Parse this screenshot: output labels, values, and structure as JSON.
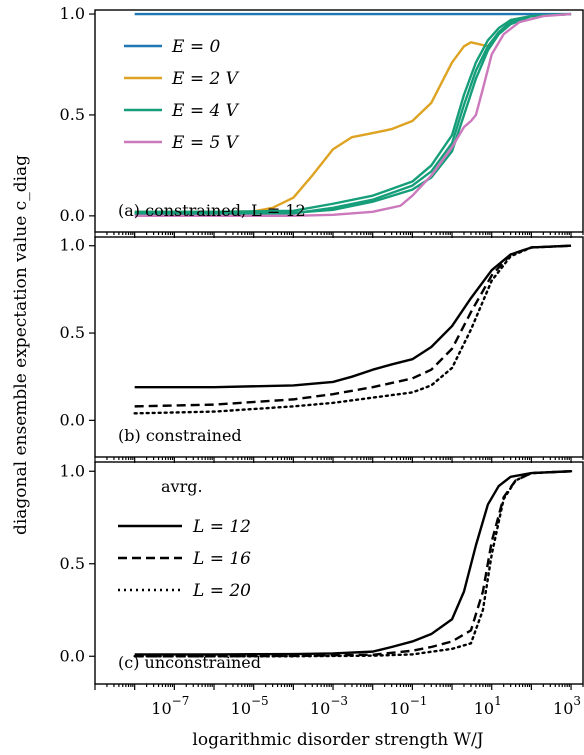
{
  "y_axis_label": "diagonal ensemble expectation value c_diag",
  "x_axis_label": "logarithmic disorder strength W/J",
  "colors": {
    "E0": "#1f77b4",
    "E2": "#dea322",
    "E4": "#169e7a",
    "E5": "#cc78bc",
    "black": "#000000"
  },
  "chart_data": [
    {
      "type": "line",
      "caption": "(a) constrained, L = 12",
      "x_scale": "log",
      "xlim": [
        1e-09,
        2000
      ],
      "ylim": [
        -0.08,
        1.02
      ],
      "y_ticks": [
        "0.0",
        "0.5",
        "1.0"
      ],
      "legend_position": "upper-left",
      "series": [
        {
          "name": "E = 0",
          "color": "#1f77b4",
          "style": "solid",
          "x": [
            1e-08,
            1e-06,
            0.0001,
            0.01,
            1,
            10,
            100,
            1000
          ],
          "y": [
            1.0,
            1.0,
            1.0,
            1.0,
            1.0,
            1.0,
            1.0,
            1.0
          ]
        },
        {
          "name": "E = 2 V",
          "color": "#dea322",
          "style": "solid",
          "x": [
            1e-08,
            1e-06,
            1e-05,
            3e-05,
            0.0001,
            0.0003,
            0.001,
            0.003,
            0.01,
            0.03,
            0.1,
            0.3,
            1,
            2,
            3,
            5,
            8,
            15,
            30,
            100,
            1000
          ],
          "y": [
            0.02,
            0.02,
            0.022,
            0.04,
            0.09,
            0.2,
            0.33,
            0.39,
            0.41,
            0.43,
            0.47,
            0.56,
            0.76,
            0.84,
            0.86,
            0.85,
            0.84,
            0.9,
            0.97,
            0.99,
            1.0
          ]
        },
        {
          "name": "E = 4 V",
          "color": "#169e7a",
          "style": "solid",
          "x": [
            1e-08,
            1e-06,
            0.0001,
            0.001,
            0.01,
            0.1,
            0.3,
            1,
            2,
            4,
            8,
            15,
            30,
            100,
            1000
          ],
          "y": [
            0.01,
            0.01,
            0.012,
            0.04,
            0.08,
            0.15,
            0.22,
            0.36,
            0.55,
            0.72,
            0.84,
            0.91,
            0.96,
            0.99,
            1.0
          ]
        },
        {
          "name": "E = 4 V",
          "color": "#169e7a",
          "style": "solid",
          "x": [
            1e-08,
            1e-06,
            0.0001,
            0.001,
            0.01,
            0.1,
            0.3,
            1,
            2,
            4,
            8,
            15,
            30,
            100,
            1000
          ],
          "y": [
            0.02,
            0.02,
            0.025,
            0.06,
            0.1,
            0.17,
            0.25,
            0.4,
            0.6,
            0.76,
            0.87,
            0.93,
            0.97,
            0.99,
            1.0
          ]
        },
        {
          "name": "E = 4 V",
          "color": "#169e7a",
          "style": "solid",
          "x": [
            1e-08,
            1e-06,
            0.0001,
            0.001,
            0.01,
            0.1,
            0.3,
            1,
            2,
            4,
            8,
            15,
            30,
            100,
            1000
          ],
          "y": [
            0.01,
            0.01,
            0.015,
            0.03,
            0.07,
            0.13,
            0.19,
            0.32,
            0.5,
            0.68,
            0.82,
            0.9,
            0.95,
            0.99,
            1.0
          ]
        },
        {
          "name": "E = 5 V",
          "color": "#cc78bc",
          "style": "solid",
          "x": [
            1e-08,
            0.0001,
            0.001,
            0.01,
            0.05,
            0.1,
            0.3,
            1,
            2,
            3,
            4,
            6,
            10,
            20,
            50,
            200,
            1000
          ],
          "y": [
            0.0,
            0.0,
            0.005,
            0.02,
            0.05,
            0.1,
            0.2,
            0.34,
            0.44,
            0.47,
            0.5,
            0.63,
            0.8,
            0.9,
            0.96,
            0.99,
            1.0
          ]
        }
      ]
    },
    {
      "type": "line",
      "caption": "(b) constrained",
      "x_scale": "log",
      "xlim": [
        1e-09,
        2000
      ],
      "ylim": [
        -0.21,
        1.05
      ],
      "y_ticks": [
        "0.0",
        "0.5",
        "1.0"
      ],
      "series": [
        {
          "color": "#000000",
          "style": "solid",
          "x": [
            1e-08,
            1e-06,
            0.0001,
            0.001,
            0.003,
            0.01,
            0.03,
            0.1,
            0.3,
            1,
            3,
            10,
            30,
            100,
            1000
          ],
          "y": [
            0.19,
            0.19,
            0.2,
            0.22,
            0.25,
            0.29,
            0.32,
            0.35,
            0.42,
            0.54,
            0.7,
            0.86,
            0.95,
            0.99,
            1.0
          ]
        },
        {
          "color": "#000000",
          "style": "dashed",
          "x": [
            1e-08,
            1e-06,
            0.0001,
            0.001,
            0.01,
            0.1,
            0.3,
            1,
            3,
            10,
            30,
            100,
            1000
          ],
          "y": [
            0.08,
            0.09,
            0.12,
            0.15,
            0.19,
            0.24,
            0.29,
            0.41,
            0.62,
            0.83,
            0.95,
            0.99,
            1.0
          ]
        },
        {
          "color": "#000000",
          "style": "dotted",
          "x": [
            1e-08,
            1e-06,
            0.0001,
            0.001,
            0.01,
            0.1,
            0.3,
            1,
            3,
            10,
            30,
            100,
            1000
          ],
          "y": [
            0.04,
            0.05,
            0.08,
            0.1,
            0.13,
            0.16,
            0.2,
            0.3,
            0.52,
            0.8,
            0.94,
            0.99,
            1.0
          ]
        }
      ]
    },
    {
      "type": "line",
      "caption": "(c) unconstrained",
      "x_scale": "log",
      "xlim": [
        1e-09,
        2000
      ],
      "ylim": [
        -0.15,
        1.05
      ],
      "y_ticks": [
        "0.0",
        "0.5",
        "1.0"
      ],
      "legend_title": "avrg.",
      "legend_position": "upper-left",
      "x_ticks": [
        {
          "base": "10",
          "exp": "−7"
        },
        {
          "base": "10",
          "exp": "−5"
        },
        {
          "base": "10",
          "exp": "−3"
        },
        {
          "base": "10",
          "exp": "−1"
        },
        {
          "base": "10",
          "exp": "1"
        },
        {
          "base": "10",
          "exp": "3"
        }
      ],
      "x_tick_values": [
        1e-07,
        1e-05,
        0.001,
        0.1,
        10,
        1000
      ],
      "series": [
        {
          "name": "L = 12",
          "color": "#000000",
          "style": "solid",
          "x": [
            1e-08,
            1e-06,
            0.0001,
            0.001,
            0.01,
            0.03,
            0.1,
            0.3,
            1,
            2,
            4,
            8,
            15,
            30,
            100,
            1000
          ],
          "y": [
            0.01,
            0.01,
            0.012,
            0.015,
            0.025,
            0.05,
            0.08,
            0.12,
            0.2,
            0.35,
            0.6,
            0.82,
            0.92,
            0.97,
            0.99,
            1.0
          ]
        },
        {
          "name": "L = 16",
          "color": "#000000",
          "style": "dashed",
          "x": [
            1e-08,
            1e-06,
            0.0001,
            0.01,
            0.1,
            0.3,
            1,
            3,
            6,
            10,
            20,
            40,
            100,
            1000
          ],
          "y": [
            0.0,
            0.0,
            0.002,
            0.008,
            0.03,
            0.05,
            0.08,
            0.14,
            0.35,
            0.62,
            0.86,
            0.95,
            0.99,
            1.0
          ]
        },
        {
          "name": "L = 20",
          "color": "#000000",
          "style": "dotted",
          "x": [
            1e-08,
            1e-06,
            0.0001,
            0.01,
            0.1,
            1,
            3,
            6,
            10,
            20,
            40,
            100,
            1000
          ],
          "y": [
            0.0,
            0.0,
            0.0,
            0.003,
            0.01,
            0.04,
            0.07,
            0.25,
            0.55,
            0.85,
            0.95,
            0.99,
            1.0
          ]
        }
      ]
    }
  ]
}
